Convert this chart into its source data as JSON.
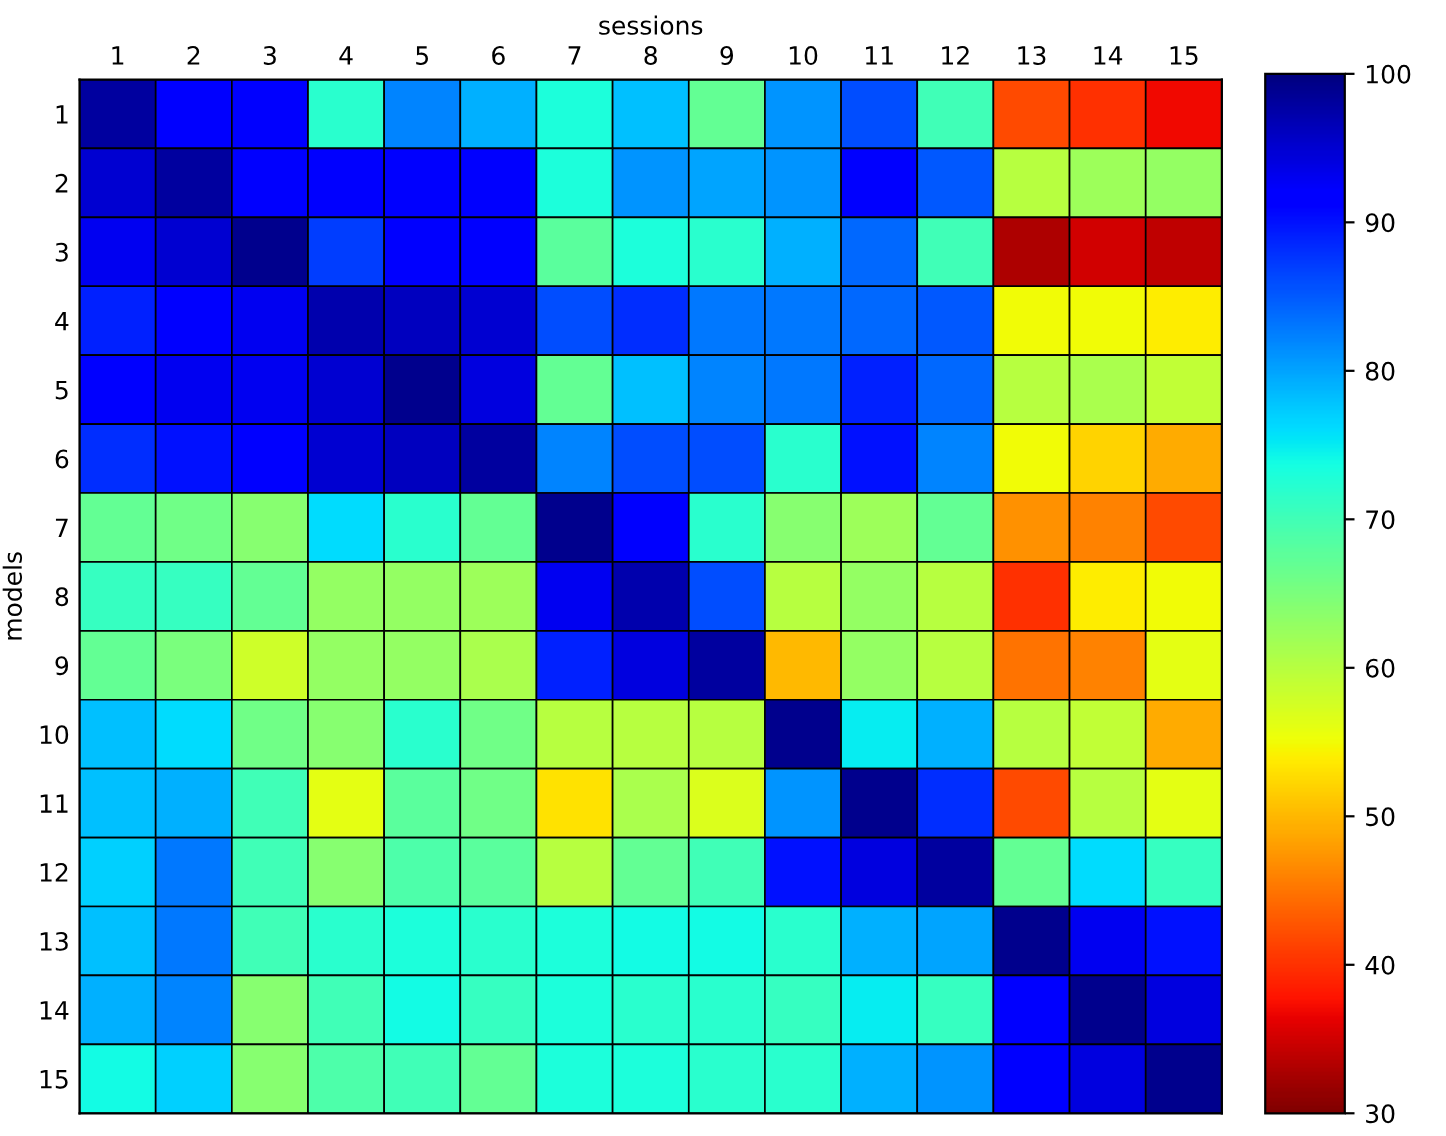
{
  "chart_data": {
    "type": "heatmap",
    "xlabel": "sessions",
    "ylabel": "models",
    "categories": [
      "1",
      "2",
      "3",
      "4",
      "5",
      "6",
      "7",
      "8",
      "9",
      "10",
      "11",
      "12",
      "13",
      "14",
      "15"
    ],
    "y_categories": [
      "1",
      "2",
      "3",
      "4",
      "5",
      "6",
      "7",
      "8",
      "9",
      "10",
      "11",
      "12",
      "13",
      "14",
      "15"
    ],
    "cells": [
      [
        98,
        92,
        91,
        72,
        82,
        79,
        73,
        78,
        67,
        81,
        86,
        70,
        42,
        40,
        37
      ],
      [
        95,
        98,
        92,
        92,
        92,
        92,
        73,
        81,
        80,
        81,
        91,
        85,
        60,
        62,
        63
      ],
      [
        93,
        95,
        99,
        87,
        92,
        92,
        68,
        73,
        72,
        79,
        84,
        70,
        33,
        35,
        34
      ],
      [
        89,
        92,
        93,
        97,
        96,
        95,
        86,
        88,
        83,
        83,
        84,
        85,
        55,
        55,
        54
      ],
      [
        91,
        93,
        93,
        95,
        99,
        94,
        67,
        78,
        82,
        83,
        89,
        84,
        60,
        61,
        59
      ],
      [
        88,
        90,
        91,
        95,
        96,
        98,
        82,
        86,
        86,
        72,
        90,
        82,
        55,
        52,
        49
      ],
      [
        67,
        66,
        64,
        76,
        72,
        67,
        99,
        92,
        72,
        64,
        62,
        67,
        47,
        46,
        42
      ],
      [
        71,
        71,
        67,
        63,
        63,
        62,
        93,
        97,
        86,
        60,
        63,
        60,
        40,
        54,
        55
      ],
      [
        67,
        65,
        58,
        63,
        63,
        61,
        89,
        94,
        98,
        50,
        63,
        60,
        45,
        46,
        56
      ],
      [
        78,
        76,
        66,
        64,
        72,
        66,
        60,
        60,
        60,
        99,
        75,
        79,
        60,
        59,
        49
      ],
      [
        78,
        79,
        70,
        56,
        68,
        66,
        53,
        61,
        57,
        81,
        99,
        88,
        42,
        60,
        56
      ],
      [
        77,
        83,
        70,
        64,
        69,
        68,
        60,
        67,
        70,
        90,
        94,
        98,
        67,
        76,
        71
      ],
      [
        78,
        83,
        70,
        72,
        73,
        72,
        73,
        74,
        74,
        72,
        79,
        80,
        99,
        93,
        90
      ],
      [
        79,
        82,
        64,
        70,
        74,
        71,
        73,
        72,
        72,
        71,
        75,
        71,
        92,
        99,
        94
      ],
      [
        74,
        77,
        64,
        69,
        70,
        67,
        73,
        73,
        72,
        72,
        79,
        81,
        91,
        94,
        99
      ]
    ],
    "clim": [
      30,
      100
    ],
    "cticks": [
      30,
      40,
      50,
      60,
      70,
      80,
      90,
      100
    ]
  }
}
